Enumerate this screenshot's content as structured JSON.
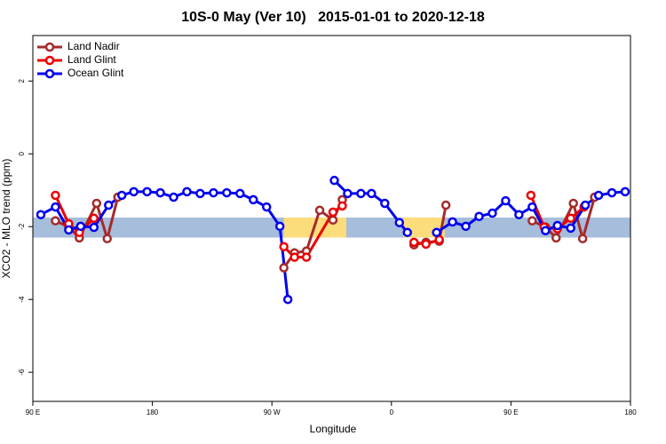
{
  "chart_data": {
    "type": "line",
    "title": "10S-0 May (Ver 10)   2015-01-01 to 2020-12-18",
    "x_label": "Longitude",
    "y_label": "XCO2 - MLO trend (ppm)",
    "xlim": [
      90,
      540
    ],
    "ylim": [
      -6.8,
      3.25
    ],
    "xticks": [
      {
        "value": 90,
        "label": "90 E"
      },
      {
        "value": 180,
        "label": "180"
      },
      {
        "value": 270,
        "label": "90 W"
      },
      {
        "value": 360,
        "label": "0"
      },
      {
        "value": 450,
        "label": "90 E"
      },
      {
        "value": 540,
        "label": "180"
      }
    ],
    "yticks": [
      -6,
      -4,
      -2,
      0,
      2
    ],
    "legend": "top-left",
    "band": {
      "ymin": -2.3,
      "ymax": -1.75,
      "color": "#a6bddb"
    },
    "highlights": [
      {
        "xmin": 279,
        "xmax": 326,
        "color": "#fddc7c"
      },
      {
        "xmin": 369,
        "xmax": 400,
        "color": "#fddc7c"
      }
    ],
    "series": [
      {
        "name": "Land Nadir",
        "color": "#a52a2a",
        "x": [
          107,
          117,
          125,
          138,
          146,
          154,
          null,
          279,
          287,
          296,
          306,
          316,
          323,
          null,
          377,
          386,
          396,
          401,
          null,
          466,
          476,
          484,
          497,
          504,
          513
        ],
        "values": [
          -1.84,
          -2.01,
          -2.31,
          -1.36,
          -2.33,
          -1.19,
          null,
          -3.13,
          -2.72,
          -2.67,
          -1.55,
          -1.82,
          -1.26,
          null,
          -2.5,
          -2.43,
          -2.4,
          -1.41,
          null,
          -1.84,
          -2.01,
          -2.31,
          -1.36,
          -2.33,
          -1.19
        ]
      },
      {
        "name": "Land Glint",
        "color": "#ee0000",
        "x": [
          107,
          117,
          125,
          136,
          null,
          279,
          287,
          296,
          316,
          323,
          null,
          377,
          386,
          396,
          null,
          465,
          475,
          485,
          495,
          505
        ],
        "values": [
          -1.14,
          -1.92,
          -2.16,
          -1.77,
          null,
          -2.55,
          -2.84,
          -2.84,
          -1.6,
          -1.43,
          null,
          -2.43,
          -2.48,
          -2.36,
          null,
          -1.14,
          -2.01,
          -2.06,
          -1.77,
          -1.46
        ]
      },
      {
        "name": "Ocean Glint",
        "color": "#0000ee",
        "x": [
          96,
          107,
          117,
          126,
          136,
          147,
          157,
          166,
          176,
          186,
          196,
          206,
          216,
          226,
          236,
          246,
          256,
          266,
          276,
          282,
          null,
          317,
          327,
          337,
          345,
          355,
          366,
          372,
          null,
          394,
          406,
          416,
          426,
          436,
          446,
          456,
          466,
          476,
          485,
          495,
          506,
          516,
          526,
          536
        ],
        "values": [
          -1.67,
          -1.46,
          -2.09,
          -1.99,
          -2.02,
          -1.41,
          -1.14,
          -1.04,
          -1.04,
          -1.07,
          -1.19,
          -1.04,
          -1.09,
          -1.07,
          -1.07,
          -1.09,
          -1.26,
          -1.46,
          -1.99,
          -4.0,
          null,
          -0.73,
          -1.09,
          -1.09,
          -1.09,
          -1.36,
          -1.89,
          -2.16,
          null,
          -2.16,
          -1.87,
          -1.99,
          -1.72,
          -1.63,
          -1.29,
          -1.67,
          -1.46,
          -2.11,
          -1.97,
          -2.04,
          -1.41,
          -1.14,
          -1.07,
          -1.04
        ]
      }
    ]
  }
}
